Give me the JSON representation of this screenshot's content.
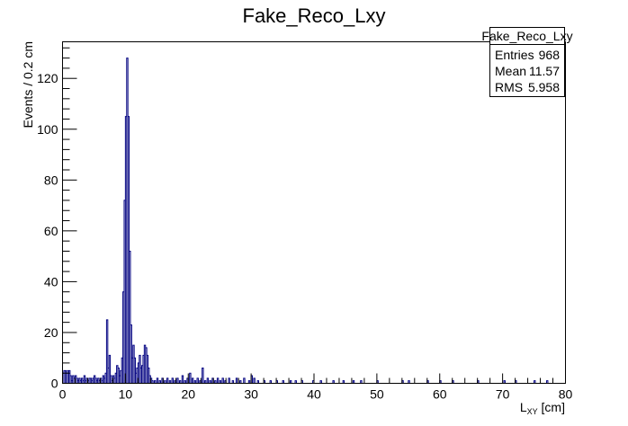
{
  "chart_data": {
    "type": "bar",
    "title": "Fake_Reco_Lxy",
    "xlabel": "L",
    "xlabel_sub": "XY",
    "xlabel_unit": " [cm]",
    "ylabel": "Events / 0.2 cm",
    "xlim": [
      0,
      80
    ],
    "ylim": [
      0,
      134.4
    ],
    "bin_width": 0.2,
    "x_ticks": [
      "0",
      "10",
      "20",
      "30",
      "40",
      "50",
      "60",
      "70",
      "80"
    ],
    "y_ticks": [
      "0",
      "20",
      "40",
      "60",
      "80",
      "100",
      "120"
    ],
    "line_color": "#000080",
    "grid": false,
    "bins": [
      [
        0.0,
        4
      ],
      [
        0.2,
        5
      ],
      [
        0.4,
        5
      ],
      [
        0.6,
        4
      ],
      [
        0.8,
        5
      ],
      [
        1.0,
        5
      ],
      [
        1.2,
        3
      ],
      [
        1.4,
        1
      ],
      [
        1.6,
        3
      ],
      [
        1.8,
        2
      ],
      [
        2.0,
        3
      ],
      [
        2.2,
        2
      ],
      [
        2.4,
        1
      ],
      [
        2.6,
        2
      ],
      [
        2.8,
        1
      ],
      [
        3.0,
        2
      ],
      [
        3.2,
        1
      ],
      [
        3.4,
        3
      ],
      [
        3.6,
        1
      ],
      [
        3.8,
        2
      ],
      [
        4.0,
        1
      ],
      [
        4.2,
        2
      ],
      [
        4.4,
        2
      ],
      [
        4.6,
        1
      ],
      [
        4.8,
        2
      ],
      [
        5.0,
        3
      ],
      [
        5.2,
        2
      ],
      [
        5.4,
        1
      ],
      [
        5.6,
        2
      ],
      [
        5.8,
        1
      ],
      [
        6.0,
        2
      ],
      [
        6.2,
        1
      ],
      [
        6.4,
        3
      ],
      [
        6.6,
        2
      ],
      [
        6.8,
        4
      ],
      [
        7.0,
        25
      ],
      [
        7.2,
        6
      ],
      [
        7.4,
        11
      ],
      [
        7.6,
        3
      ],
      [
        7.8,
        1
      ],
      [
        8.0,
        3
      ],
      [
        8.2,
        2
      ],
      [
        8.4,
        4
      ],
      [
        8.6,
        7
      ],
      [
        8.8,
        6
      ],
      [
        9.0,
        3
      ],
      [
        9.2,
        5
      ],
      [
        9.4,
        10
      ],
      [
        9.6,
        36
      ],
      [
        9.8,
        72
      ],
      [
        10.0,
        105
      ],
      [
        10.2,
        128
      ],
      [
        10.4,
        105
      ],
      [
        10.6,
        52
      ],
      [
        10.8,
        23
      ],
      [
        11.0,
        10
      ],
      [
        11.2,
        15
      ],
      [
        11.4,
        10
      ],
      [
        11.6,
        4
      ],
      [
        11.8,
        6
      ],
      [
        12.0,
        8
      ],
      [
        12.2,
        11
      ],
      [
        12.4,
        6
      ],
      [
        12.6,
        7
      ],
      [
        12.8,
        11
      ],
      [
        13.0,
        15
      ],
      [
        13.2,
        14
      ],
      [
        13.4,
        11
      ],
      [
        13.6,
        6
      ],
      [
        13.8,
        3
      ],
      [
        14.0,
        2
      ],
      [
        14.2,
        1
      ],
      [
        14.6,
        1
      ],
      [
        15.0,
        2
      ],
      [
        15.4,
        1
      ],
      [
        15.8,
        2
      ],
      [
        16.2,
        1
      ],
      [
        16.6,
        2
      ],
      [
        17.0,
        1
      ],
      [
        17.4,
        2
      ],
      [
        17.8,
        1
      ],
      [
        18.2,
        2
      ],
      [
        18.6,
        1
      ],
      [
        19.0,
        3
      ],
      [
        19.4,
        1
      ],
      [
        19.8,
        2
      ],
      [
        20.2,
        4
      ],
      [
        20.6,
        2
      ],
      [
        21.0,
        1
      ],
      [
        21.4,
        2
      ],
      [
        21.8,
        1
      ],
      [
        22.2,
        6
      ],
      [
        22.6,
        1
      ],
      [
        23.0,
        2
      ],
      [
        23.4,
        1
      ],
      [
        23.8,
        2
      ],
      [
        24.2,
        1
      ],
      [
        24.6,
        2
      ],
      [
        25.0,
        1
      ],
      [
        25.4,
        2
      ],
      [
        25.8,
        1
      ],
      [
        26.4,
        2
      ],
      [
        27.0,
        1
      ],
      [
        27.6,
        2
      ],
      [
        28.2,
        1
      ],
      [
        28.8,
        2
      ],
      [
        29.6,
        1
      ],
      [
        30.0,
        3
      ],
      [
        30.4,
        2
      ],
      [
        31.0,
        1
      ],
      [
        32.0,
        1
      ],
      [
        33.0,
        1
      ],
      [
        34.0,
        1
      ],
      [
        35.0,
        1
      ],
      [
        36.2,
        1
      ],
      [
        37.0,
        1
      ],
      [
        38.0,
        1
      ],
      [
        39.8,
        1
      ],
      [
        41.0,
        1
      ],
      [
        43.0,
        1
      ],
      [
        44.6,
        1
      ],
      [
        46.2,
        1
      ],
      [
        47.4,
        1
      ],
      [
        50.0,
        1
      ],
      [
        54.0,
        1
      ],
      [
        55.0,
        1
      ],
      [
        58.0,
        1
      ],
      [
        60.0,
        1
      ],
      [
        62.0,
        1
      ],
      [
        66.0,
        1
      ],
      [
        70.2,
        1
      ],
      [
        72.0,
        1
      ],
      [
        75.0,
        1
      ],
      [
        77.0,
        1
      ]
    ]
  },
  "stats_box": {
    "title": "Fake_Reco_Lxy",
    "rows": [
      {
        "label": "Entries",
        "value": "968"
      },
      {
        "label": "Mean",
        "value": "11.57"
      },
      {
        "label": "RMS",
        "value": "5.958"
      }
    ]
  }
}
